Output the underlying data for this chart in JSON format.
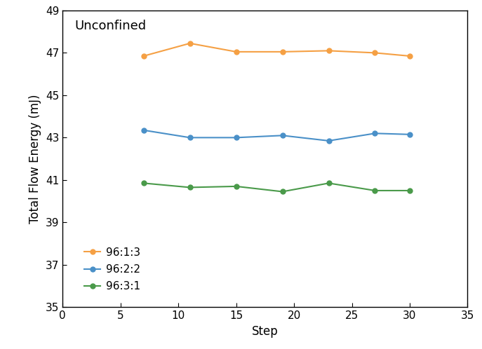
{
  "title": "Unconfined",
  "xlabel": "Step",
  "ylabel": "Total Flow Energy (mJ)",
  "xlim": [
    0,
    34
  ],
  "ylim": [
    35,
    49
  ],
  "yticks": [
    35,
    37,
    39,
    41,
    43,
    45,
    47,
    49
  ],
  "xticks": [
    0,
    5,
    10,
    15,
    20,
    25,
    30,
    35
  ],
  "series": [
    {
      "label": "96:1:3",
      "color": "#F5A044",
      "x": [
        7,
        11,
        15,
        19,
        23,
        27,
        30
      ],
      "y": [
        46.85,
        47.45,
        47.05,
        47.05,
        47.1,
        47.0,
        46.85
      ]
    },
    {
      "label": "96:2:2",
      "color": "#4A90C8",
      "x": [
        7,
        11,
        15,
        19,
        23,
        27,
        30
      ],
      "y": [
        43.35,
        43.0,
        43.0,
        43.1,
        42.85,
        43.2,
        43.15
      ]
    },
    {
      "label": "96:3:1",
      "color": "#4A9A4A",
      "x": [
        7,
        11,
        15,
        19,
        23,
        27,
        30
      ],
      "y": [
        40.85,
        40.65,
        40.7,
        40.45,
        40.85,
        40.5,
        40.5
      ]
    }
  ],
  "marker": "o",
  "markersize": 5,
  "linewidth": 1.5,
  "background_color": "#ffffff",
  "title_fontsize": 13,
  "axis_label_fontsize": 12,
  "tick_fontsize": 11,
  "legend_fontsize": 11
}
